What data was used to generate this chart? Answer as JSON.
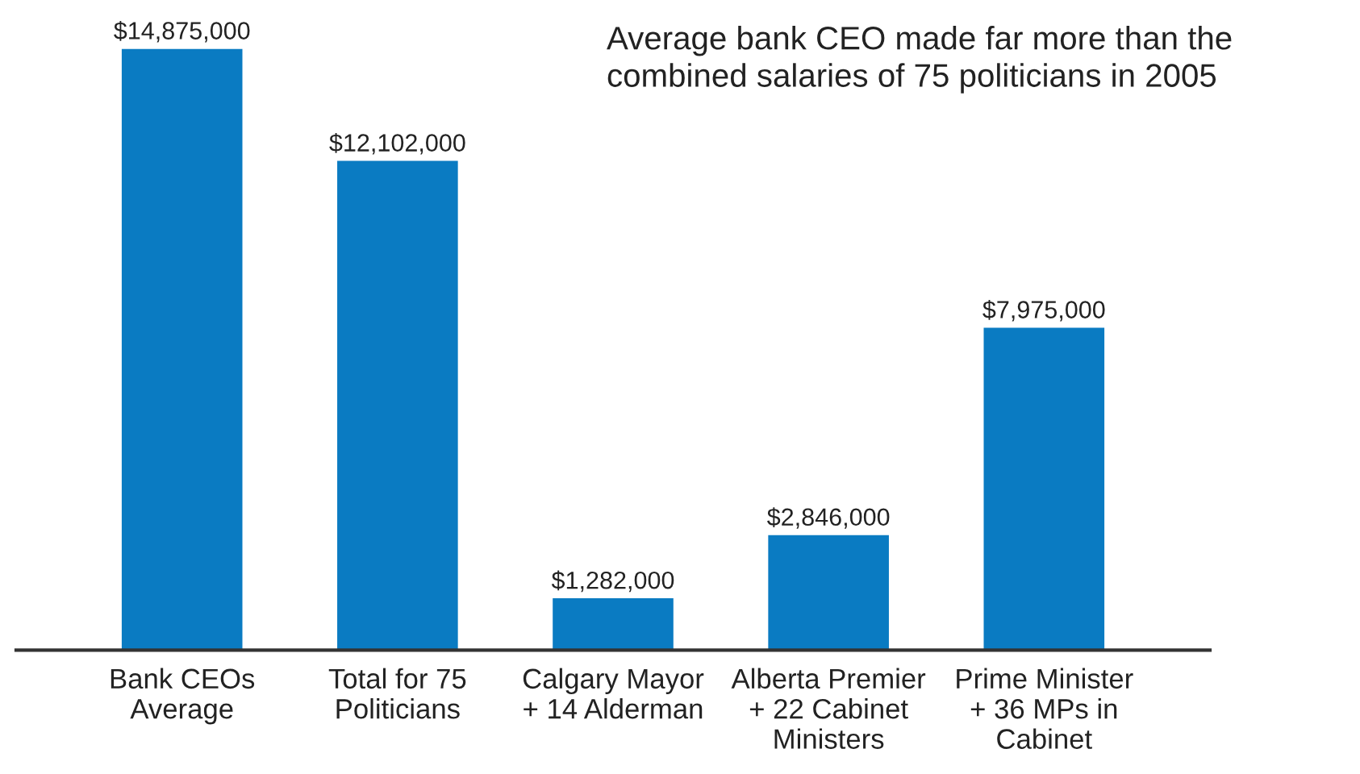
{
  "chart_data": {
    "type": "bar",
    "title": "Average bank CEO made far more than the\ncombined salaries of 75 politicians in 2005",
    "categories": [
      "Bank CEOs\nAverage",
      "Total for 75\nPoliticians",
      "Calgary Mayor\n+ 14 Alderman",
      "Alberta Premier\n+ 22 Cabinet\nMinisters",
      "Prime Minister\n+ 36 MPs in\nCabinet"
    ],
    "values": [
      14875000,
      12102000,
      1282000,
      2846000,
      7975000
    ],
    "value_labels": [
      "$14,875,000",
      "$12,102,000",
      "$1,282,000",
      "$2,846,000",
      "$7,975,000"
    ],
    "color": "#0a7bc2",
    "grid": false,
    "legend": false
  }
}
